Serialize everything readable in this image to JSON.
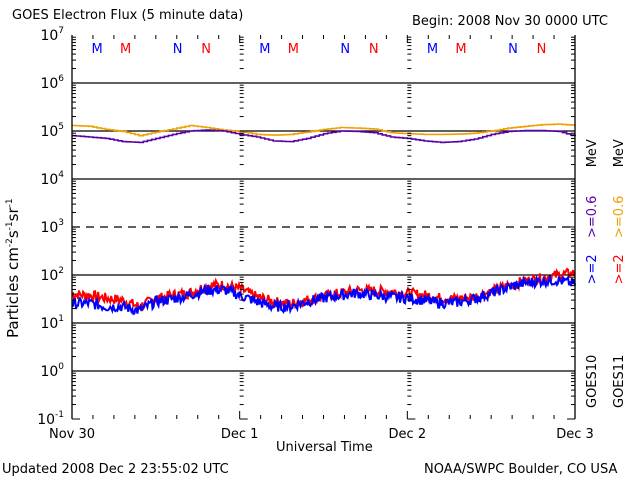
{
  "header": {
    "title": "GOES Electron Flux (5 minute data)",
    "begin": "Begin: 2008 Nov 30 0000 UTC"
  },
  "footer": {
    "updated": "Updated 2008 Dec  2 23:55:02 UTC",
    "credit": "NOAA/SWPC Boulder, CO USA"
  },
  "right_legend": {
    "goes10": {
      "satellite": "GOES10",
      "ch1": ">=2",
      "ch2": ">=0.6",
      "unit": "MeV",
      "color_ch1": "#0000ff",
      "color_ch2": "#5a00aa"
    },
    "goes11": {
      "satellite": "GOES11",
      "ch1": ">=2",
      "ch2": ">=0.6",
      "unit": "MeV",
      "color_ch1": "#ff0000",
      "color_ch2": "#f0a000"
    }
  },
  "chart_data": {
    "type": "line",
    "title": "GOES Electron Flux (5 minute data)",
    "xlabel": "Universal Time",
    "ylabel": "Particles cm^-2 s^-1 sr^-1",
    "yscale": "log",
    "ylim": [
      0.1,
      10000000
    ],
    "xlim_days": [
      0,
      3
    ],
    "x_tick_labels": [
      "Nov 30",
      "Dec 1",
      "Dec 2",
      "Dec 3"
    ],
    "y_tick_labels": [
      {
        "base": "10",
        "exp": "7"
      },
      {
        "base": "10",
        "exp": "6"
      },
      {
        "base": "10",
        "exp": "5"
      },
      {
        "base": "10",
        "exp": "4"
      },
      {
        "base": "10",
        "exp": "3"
      },
      {
        "base": "10",
        "exp": "2"
      },
      {
        "base": "10",
        "exp": "1"
      },
      {
        "base": "10",
        "exp": "0"
      },
      {
        "base": "10",
        "exp": "-1"
      }
    ],
    "gridlines_solid_decades": [
      6,
      5,
      4,
      2,
      1,
      0
    ],
    "gridlines_dashed_decades": [
      3
    ],
    "magnetopause_markers": [
      {
        "day": 0.15,
        "label": "M",
        "color": "#0000ff"
      },
      {
        "day": 0.32,
        "label": "M",
        "color": "#ff0000"
      },
      {
        "day": 0.63,
        "label": "N",
        "color": "#0000ff"
      },
      {
        "day": 0.8,
        "label": "N",
        "color": "#ff0000"
      },
      {
        "day": 1.15,
        "label": "M",
        "color": "#0000ff"
      },
      {
        "day": 1.32,
        "label": "M",
        "color": "#ff0000"
      },
      {
        "day": 1.63,
        "label": "N",
        "color": "#0000ff"
      },
      {
        "day": 1.8,
        "label": "N",
        "color": "#ff0000"
      },
      {
        "day": 2.15,
        "label": "M",
        "color": "#0000ff"
      },
      {
        "day": 2.32,
        "label": "M",
        "color": "#ff0000"
      },
      {
        "day": 2.63,
        "label": "N",
        "color": "#0000ff"
      },
      {
        "day": 2.8,
        "label": "N",
        "color": "#ff0000"
      }
    ],
    "x_days": [
      0,
      0.1,
      0.2,
      0.3,
      0.4,
      0.5,
      0.6,
      0.7,
      0.8,
      0.9,
      1.0,
      1.1,
      1.2,
      1.3,
      1.4,
      1.5,
      1.6,
      1.7,
      1.8,
      1.9,
      2.0,
      2.1,
      2.2,
      2.3,
      2.4,
      2.5,
      2.6,
      2.7,
      2.8,
      2.9,
      3.0
    ],
    "series": [
      {
        "name": "GOES11 >=0.6 MeV",
        "color": "#f0a000",
        "values": [
          130000,
          125000,
          108000,
          98000,
          80000,
          95000,
          110000,
          130000,
          118000,
          105000,
          98000,
          85000,
          82000,
          85000,
          95000,
          108000,
          118000,
          115000,
          110000,
          92000,
          88000,
          85000,
          85000,
          86000,
          90000,
          100000,
          115000,
          125000,
          135000,
          140000,
          130000
        ]
      },
      {
        "name": "GOES10 >=0.6 MeV",
        "color": "#5a00aa",
        "values": [
          80000,
          75000,
          70000,
          60000,
          58000,
          70000,
          85000,
          100000,
          105000,
          100000,
          85000,
          75000,
          62000,
          60000,
          70000,
          88000,
          100000,
          98000,
          92000,
          75000,
          70000,
          62000,
          58000,
          60000,
          68000,
          85000,
          98000,
          102000,
          102000,
          98000,
          78000
        ]
      },
      {
        "name": "GOES11 >=2 MeV",
        "color": "#ff0000",
        "values": [
          40,
          38,
          33,
          30,
          22,
          32,
          38,
          42,
          60,
          62,
          52,
          35,
          28,
          25,
          30,
          35,
          42,
          48,
          47,
          45,
          42,
          38,
          33,
          32,
          35,
          45,
          60,
          75,
          85,
          100,
          110
        ]
      },
      {
        "name": "GOES10 >=2 MeV",
        "color": "#0000ff",
        "values": [
          25,
          26,
          22,
          22,
          18,
          28,
          32,
          38,
          48,
          50,
          38,
          28,
          22,
          22,
          28,
          33,
          38,
          42,
          38,
          35,
          33,
          30,
          26,
          27,
          32,
          42,
          55,
          68,
          75,
          78,
          65
        ]
      }
    ],
    "legend_placement": "right-vertical",
    "grid": true
  }
}
